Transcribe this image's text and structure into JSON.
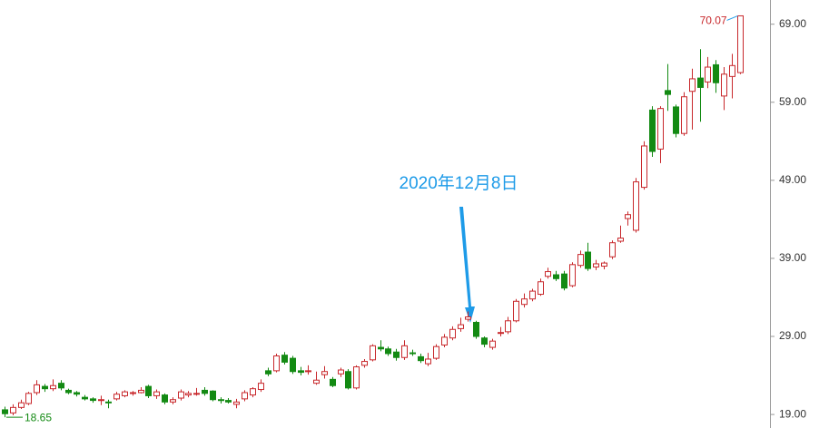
{
  "chart_data": {
    "type": "candlestick",
    "annotation": "2020年12月8日",
    "up_color": "#c8282c",
    "down_color": "#138a13",
    "annotation_color": "#1e9be8",
    "ylim": [
      17.5,
      72.1
    ],
    "yticks": [
      {
        "value": 19,
        "label": "19.00"
      },
      {
        "value": 29,
        "label": "29.00"
      },
      {
        "value": 39,
        "label": "39.00"
      },
      {
        "value": 49,
        "label": "49.00"
      },
      {
        "value": 59,
        "label": "59.00"
      },
      {
        "value": 69,
        "label": "69.00"
      }
    ],
    "open": [
      19.6,
      19.2,
      19.9,
      20.4,
      21.8,
      22.6,
      22.3,
      23.0,
      22.1,
      21.8,
      21.2,
      21.0,
      20.9,
      20.6,
      21.0,
      21.4,
      21.7,
      21.8,
      22.6,
      21.4,
      21.5,
      20.6,
      21.1,
      21.5,
      21.6,
      22.1,
      22.0,
      20.9,
      20.8,
      20.3,
      21.0,
      21.5,
      22.2,
      24.6,
      24.6,
      26.6,
      26.2,
      24.6,
      24.6,
      23.0,
      24.1,
      23.5,
      24.2,
      24.5,
      22.4,
      25.3,
      26.0,
      27.6,
      27.4,
      27.0,
      26.3,
      26.9,
      26.4,
      25.5,
      26.2,
      27.9,
      28.8,
      30.0,
      31.2,
      30.8,
      28.8,
      27.6,
      29.4,
      29.6,
      31.0,
      33.1,
      33.8,
      34.4,
      36.7,
      36.9,
      37.0,
      35.5,
      38.1,
      39.8,
      37.9,
      38.0,
      39.2,
      41.2,
      44.1,
      42.6,
      48.1,
      58.0,
      53.0,
      60.5,
      58.4,
      55.0,
      60.4,
      62.1,
      61.6,
      63.8,
      59.8,
      62.3,
      62.8
    ],
    "high": [
      20.0,
      20.3,
      20.9,
      21.9,
      23.4,
      22.9,
      23.5,
      23.4,
      22.3,
      22.0,
      21.5,
      21.2,
      21.4,
      20.9,
      21.9,
      22.1,
      22.0,
      22.5,
      22.8,
      22.2,
      21.7,
      21.2,
      22.2,
      22.0,
      22.4,
      22.5,
      22.1,
      21.2,
      21.1,
      21.0,
      22.1,
      22.5,
      23.5,
      25.0,
      26.8,
      27.0,
      26.5,
      25.1,
      25.3,
      24.5,
      25.2,
      23.8,
      25.0,
      24.8,
      25.3,
      26.1,
      28.0,
      28.5,
      27.7,
      27.4,
      28.5,
      27.3,
      26.8,
      26.9,
      28.0,
      29.3,
      30.3,
      31.4,
      32.2,
      31.0,
      29.0,
      28.7,
      30.2,
      31.5,
      33.8,
      34.5,
      35.1,
      36.4,
      37.8,
      37.4,
      37.4,
      38.5,
      40.0,
      41.0,
      38.8,
      38.6,
      41.3,
      43.2,
      45.0,
      49.3,
      54.0,
      58.5,
      58.5,
      63.9,
      58.7,
      60.3,
      63.3,
      65.8,
      64.8,
      64.4,
      63.5,
      65.2,
      70.07
    ],
    "low": [
      18.65,
      18.9,
      19.7,
      20.2,
      21.5,
      21.9,
      22.0,
      22.1,
      21.6,
      21.3,
      20.8,
      20.5,
      20.2,
      19.8,
      20.8,
      21.2,
      21.4,
      21.7,
      21.1,
      21.0,
      20.3,
      20.3,
      20.8,
      21.2,
      21.4,
      21.4,
      20.7,
      20.4,
      20.4,
      19.8,
      20.7,
      21.2,
      21.9,
      23.9,
      24.4,
      25.4,
      24.2,
      24.0,
      24.1,
      22.8,
      23.6,
      22.5,
      23.8,
      22.2,
      22.2,
      25.0,
      25.8,
      27.1,
      26.5,
      25.9,
      26.0,
      26.5,
      25.6,
      25.2,
      26.0,
      27.6,
      28.5,
      29.6,
      30.9,
      28.7,
      27.6,
      27.3,
      29.0,
      29.3,
      30.8,
      32.7,
      33.5,
      34.2,
      36.4,
      36.1,
      34.9,
      35.3,
      37.8,
      37.4,
      37.5,
      37.6,
      38.9,
      41.0,
      43.2,
      42.3,
      47.8,
      52.0,
      51.2,
      57.9,
      54.5,
      54.7,
      55.5,
      56.5,
      60.8,
      60.2,
      58.0,
      59.5,
      62.6
    ],
    "close": [
      19.1,
      19.9,
      20.5,
      21.7,
      22.8,
      22.3,
      22.7,
      22.4,
      21.8,
      21.6,
      21.0,
      20.8,
      20.9,
      20.5,
      21.6,
      21.9,
      21.8,
      22.1,
      21.4,
      21.9,
      20.6,
      20.9,
      21.9,
      21.7,
      21.7,
      21.7,
      20.9,
      20.8,
      20.6,
      20.6,
      21.8,
      22.3,
      23.0,
      24.2,
      26.5,
      25.7,
      24.5,
      24.4,
      24.6,
      23.4,
      24.5,
      22.7,
      24.7,
      22.4,
      25.1,
      25.8,
      27.8,
      27.4,
      26.8,
      26.3,
      27.8,
      26.8,
      25.9,
      26.1,
      27.7,
      28.9,
      29.9,
      30.5,
      31.5,
      29.0,
      28.0,
      28.4,
      29.5,
      31.0,
      33.5,
      33.8,
      34.8,
      36.0,
      37.3,
      36.4,
      35.2,
      38.2,
      39.5,
      37.7,
      38.3,
      38.4,
      41.0,
      41.6,
      44.6,
      48.8,
      53.4,
      52.7,
      58.2,
      60.0,
      55.0,
      59.7,
      62.0,
      60.9,
      63.5,
      61.5,
      62.6,
      63.7,
      70.07
    ]
  }
}
